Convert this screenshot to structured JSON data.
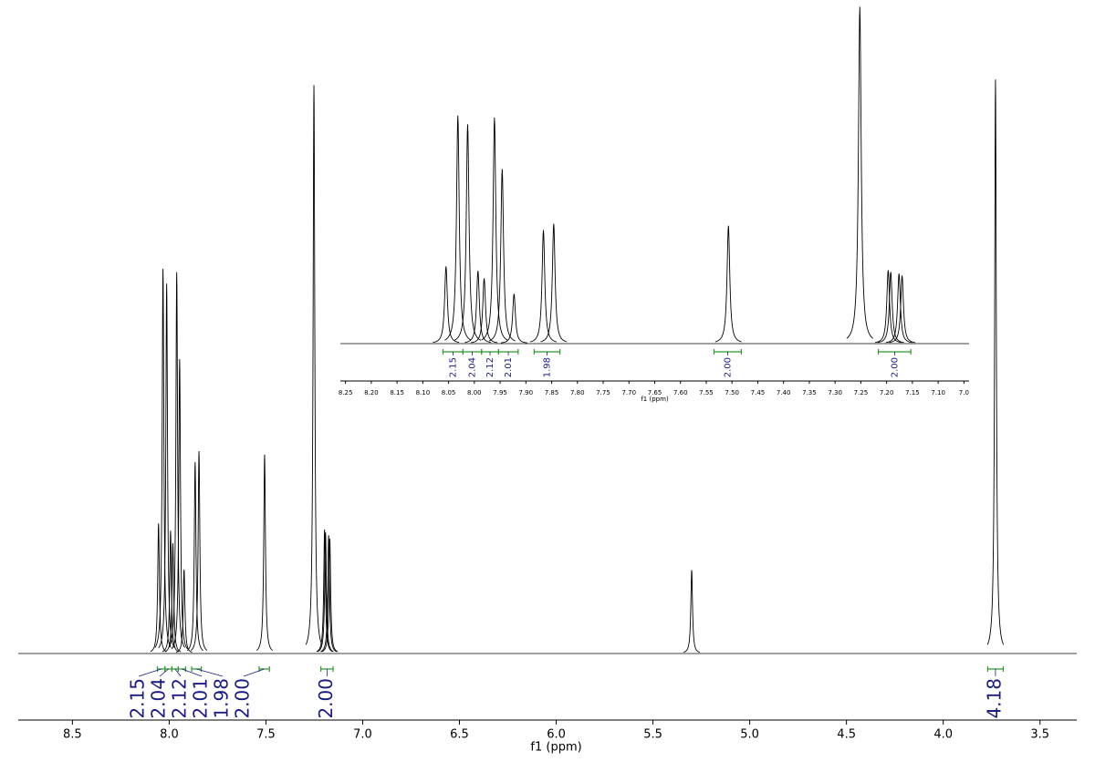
{
  "chart_data": [
    {
      "type": "nmr",
      "x_label": "f1 (ppm)",
      "color": "#000000",
      "integral_color": "#2e9a2e",
      "label_color": "#1c1c80",
      "xlim": [
        8.78,
        3.31
      ],
      "ylim": [
        0,
        115
      ],
      "xticks": [
        8.5,
        {
          "value": 8.0,
          "label": "8.0"
        },
        7.5,
        {
          "value": 7.0,
          "label": "7.0"
        },
        6.5,
        {
          "value": 6.0,
          "label": "6.0"
        },
        5.5,
        {
          "value": 5.0,
          "label": "5.0"
        },
        4.5,
        {
          "value": 4.0,
          "label": "4.0"
        },
        3.5
      ],
      "peaks": {
        "x": [
          8.055,
          8.032,
          8.013,
          7.993,
          7.981,
          7.961,
          7.946,
          7.923,
          7.866,
          7.846,
          7.507,
          7.252,
          7.197,
          7.192,
          7.176,
          7.17,
          5.3,
          3.73
        ],
        "values": [
          22.9,
          67.7,
          65.1,
          21.6,
          19.4,
          67.1,
          51.8,
          14.8,
          33.7,
          35.6,
          35.0,
          100,
          21.8,
          21.3,
          20.8,
          20.2,
          14.7,
          101
        ]
      },
      "integrals": {
        "ranges": [
          [
            8.061,
            8.022
          ],
          [
            8.022,
            7.986
          ],
          [
            7.986,
            7.953
          ],
          [
            7.953,
            7.915
          ],
          [
            7.884,
            7.834
          ],
          [
            7.535,
            7.482
          ],
          [
            7.216,
            7.153
          ],
          [
            3.77,
            3.69
          ]
        ],
        "values": [
          2.15,
          2.04,
          2.12,
          2.01,
          1.98,
          2.0,
          2.0,
          4.18
        ],
        "value_labels": [
          "2.15",
          "2.04",
          "2.12",
          "2.01",
          "1.98",
          "2.00",
          "2.00",
          "4.18"
        ]
      }
    },
    {
      "type": "nmr",
      "x_label": "f1 (ppm)",
      "color": "#000000",
      "integral_color": "#2e9a2e",
      "label_color": "#1c1c80",
      "xlim": [
        8.26,
        7.04
      ],
      "ylim": [
        0,
        102
      ],
      "xticks": [
        8.25,
        {
          "value": 8.2,
          "label": "8.20"
        },
        8.15,
        {
          "value": 8.1,
          "label": "8.10"
        },
        8.05,
        {
          "value": 8.0,
          "label": "8.00"
        },
        7.95,
        {
          "value": 7.9,
          "label": "7.90"
        },
        7.85,
        {
          "value": 7.8,
          "label": "7.80"
        },
        7.75,
        {
          "value": 7.7,
          "label": "7.70"
        },
        7.65,
        {
          "value": 7.6,
          "label": "7.60"
        },
        7.55,
        {
          "value": 7.5,
          "label": "7.50"
        },
        7.45,
        {
          "value": 7.4,
          "label": "7.40"
        },
        7.35,
        {
          "value": 7.3,
          "label": "7.30"
        },
        7.25,
        {
          "value": 7.2,
          "label": "7.20"
        },
        7.15,
        {
          "value": 7.1,
          "label": "7.10"
        },
        {
          "value": 7.05,
          "label": "7.0"
        }
      ],
      "peaks": {
        "x": [
          8.055,
          8.032,
          8.013,
          7.993,
          7.981,
          7.961,
          7.946,
          7.923,
          7.866,
          7.846,
          7.507,
          7.252,
          7.197,
          7.192,
          7.176,
          7.17
        ],
        "values": [
          22.9,
          67.7,
          65.1,
          21.6,
          19.4,
          67.1,
          51.8,
          14.8,
          33.7,
          35.6,
          35.0,
          100,
          21.8,
          21.3,
          20.8,
          20.2
        ]
      },
      "integrals": {
        "ranges": [
          [
            8.061,
            8.022
          ],
          [
            8.022,
            7.986
          ],
          [
            7.986,
            7.953
          ],
          [
            7.953,
            7.915
          ],
          [
            7.884,
            7.834
          ],
          [
            7.535,
            7.482
          ],
          [
            7.216,
            7.153
          ]
        ],
        "values": [
          2.15,
          2.04,
          2.12,
          2.01,
          1.98,
          2.0,
          2.0
        ],
        "value_labels": [
          "2.15",
          "2.04",
          "2.12",
          "2.01",
          "1.98",
          "2.00",
          "2.00"
        ]
      }
    }
  ]
}
